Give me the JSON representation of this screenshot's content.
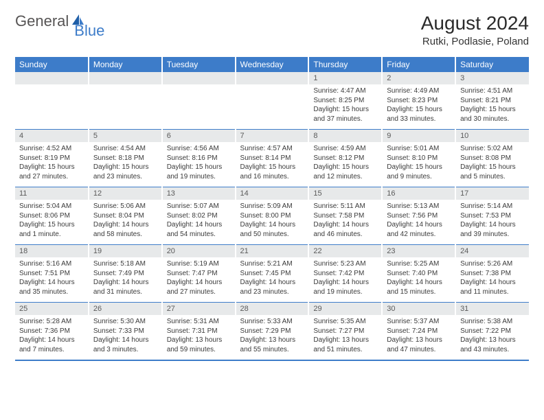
{
  "brand": {
    "word1": "General",
    "word2": "Blue",
    "text_color1": "#565454",
    "text_color2": "#3d7cc9",
    "sail_color": "#3d7cc9"
  },
  "title": "August 2024",
  "location": "Rutki, Podlasie, Poland",
  "colors": {
    "header_bg": "#3d7cc9",
    "header_text": "#ffffff",
    "daynum_bg": "#e7e9ea",
    "daynum_text": "#5a5a5a",
    "divider": "#3d7cc9",
    "cell_text": "#3a3a3a",
    "page_bg": "#ffffff"
  },
  "typography": {
    "title_fontsize": 28,
    "location_fontsize": 15,
    "weekday_fontsize": 12,
    "daynum_fontsize": 11,
    "detail_fontsize": 10
  },
  "weekdays": [
    "Sunday",
    "Monday",
    "Tuesday",
    "Wednesday",
    "Thursday",
    "Friday",
    "Saturday"
  ],
  "weeks": [
    {
      "nums": [
        "",
        "",
        "",
        "",
        "1",
        "2",
        "3"
      ],
      "details": [
        "",
        "",
        "",
        "",
        "Sunrise: 4:47 AM\nSunset: 8:25 PM\nDaylight: 15 hours and 37 minutes.",
        "Sunrise: 4:49 AM\nSunset: 8:23 PM\nDaylight: 15 hours and 33 minutes.",
        "Sunrise: 4:51 AM\nSunset: 8:21 PM\nDaylight: 15 hours and 30 minutes."
      ]
    },
    {
      "nums": [
        "4",
        "5",
        "6",
        "7",
        "8",
        "9",
        "10"
      ],
      "details": [
        "Sunrise: 4:52 AM\nSunset: 8:19 PM\nDaylight: 15 hours and 27 minutes.",
        "Sunrise: 4:54 AM\nSunset: 8:18 PM\nDaylight: 15 hours and 23 minutes.",
        "Sunrise: 4:56 AM\nSunset: 8:16 PM\nDaylight: 15 hours and 19 minutes.",
        "Sunrise: 4:57 AM\nSunset: 8:14 PM\nDaylight: 15 hours and 16 minutes.",
        "Sunrise: 4:59 AM\nSunset: 8:12 PM\nDaylight: 15 hours and 12 minutes.",
        "Sunrise: 5:01 AM\nSunset: 8:10 PM\nDaylight: 15 hours and 9 minutes.",
        "Sunrise: 5:02 AM\nSunset: 8:08 PM\nDaylight: 15 hours and 5 minutes."
      ]
    },
    {
      "nums": [
        "11",
        "12",
        "13",
        "14",
        "15",
        "16",
        "17"
      ],
      "details": [
        "Sunrise: 5:04 AM\nSunset: 8:06 PM\nDaylight: 15 hours and 1 minute.",
        "Sunrise: 5:06 AM\nSunset: 8:04 PM\nDaylight: 14 hours and 58 minutes.",
        "Sunrise: 5:07 AM\nSunset: 8:02 PM\nDaylight: 14 hours and 54 minutes.",
        "Sunrise: 5:09 AM\nSunset: 8:00 PM\nDaylight: 14 hours and 50 minutes.",
        "Sunrise: 5:11 AM\nSunset: 7:58 PM\nDaylight: 14 hours and 46 minutes.",
        "Sunrise: 5:13 AM\nSunset: 7:56 PM\nDaylight: 14 hours and 42 minutes.",
        "Sunrise: 5:14 AM\nSunset: 7:53 PM\nDaylight: 14 hours and 39 minutes."
      ]
    },
    {
      "nums": [
        "18",
        "19",
        "20",
        "21",
        "22",
        "23",
        "24"
      ],
      "details": [
        "Sunrise: 5:16 AM\nSunset: 7:51 PM\nDaylight: 14 hours and 35 minutes.",
        "Sunrise: 5:18 AM\nSunset: 7:49 PM\nDaylight: 14 hours and 31 minutes.",
        "Sunrise: 5:19 AM\nSunset: 7:47 PM\nDaylight: 14 hours and 27 minutes.",
        "Sunrise: 5:21 AM\nSunset: 7:45 PM\nDaylight: 14 hours and 23 minutes.",
        "Sunrise: 5:23 AM\nSunset: 7:42 PM\nDaylight: 14 hours and 19 minutes.",
        "Sunrise: 5:25 AM\nSunset: 7:40 PM\nDaylight: 14 hours and 15 minutes.",
        "Sunrise: 5:26 AM\nSunset: 7:38 PM\nDaylight: 14 hours and 11 minutes."
      ]
    },
    {
      "nums": [
        "25",
        "26",
        "27",
        "28",
        "29",
        "30",
        "31"
      ],
      "details": [
        "Sunrise: 5:28 AM\nSunset: 7:36 PM\nDaylight: 14 hours and 7 minutes.",
        "Sunrise: 5:30 AM\nSunset: 7:33 PM\nDaylight: 14 hours and 3 minutes.",
        "Sunrise: 5:31 AM\nSunset: 7:31 PM\nDaylight: 13 hours and 59 minutes.",
        "Sunrise: 5:33 AM\nSunset: 7:29 PM\nDaylight: 13 hours and 55 minutes.",
        "Sunrise: 5:35 AM\nSunset: 7:27 PM\nDaylight: 13 hours and 51 minutes.",
        "Sunrise: 5:37 AM\nSunset: 7:24 PM\nDaylight: 13 hours and 47 minutes.",
        "Sunrise: 5:38 AM\nSunset: 7:22 PM\nDaylight: 13 hours and 43 minutes."
      ]
    }
  ]
}
